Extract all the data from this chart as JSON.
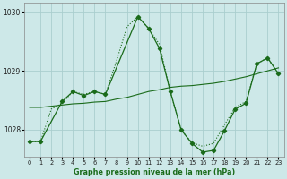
{
  "title": "Graphe pression niveau de la mer (hPa)",
  "background_color": "#cde8e8",
  "grid_color": "#aacece",
  "line_color": "#1a6b1a",
  "xlim": [
    -0.5,
    23.5
  ],
  "ylim": [
    1027.55,
    1030.15
  ],
  "yticks": [
    1028,
    1029,
    1030
  ],
  "xticks": [
    0,
    1,
    2,
    3,
    4,
    5,
    6,
    7,
    8,
    9,
    10,
    11,
    12,
    13,
    14,
    15,
    16,
    17,
    18,
    19,
    20,
    21,
    22,
    23
  ],
  "series1_dotted": {
    "x": [
      0,
      1,
      2,
      3,
      4,
      5,
      6,
      7,
      8,
      9,
      10,
      11,
      12,
      13,
      14,
      15,
      16,
      17,
      18,
      19,
      20,
      21,
      22,
      23
    ],
    "y": [
      1027.8,
      1027.8,
      1028.35,
      1028.45,
      1028.65,
      1028.6,
      1028.65,
      1028.6,
      1029.15,
      1029.75,
      1029.92,
      1029.72,
      1029.45,
      1028.65,
      1028.0,
      1027.78,
      1027.72,
      1027.77,
      1028.08,
      1028.38,
      1028.48,
      1029.12,
      1029.22,
      1028.95
    ]
  },
  "series2_solid": {
    "x": [
      0,
      1,
      2,
      3,
      4,
      5,
      6,
      7,
      8,
      9,
      10,
      11,
      12,
      13,
      14,
      15,
      16,
      17,
      18,
      19,
      20,
      21,
      22,
      23
    ],
    "y": [
      1028.38,
      1028.38,
      1028.4,
      1028.42,
      1028.44,
      1028.45,
      1028.47,
      1028.48,
      1028.52,
      1028.55,
      1028.6,
      1028.65,
      1028.68,
      1028.72,
      1028.74,
      1028.75,
      1028.77,
      1028.79,
      1028.82,
      1028.86,
      1028.9,
      1028.95,
      1029.0,
      1029.05
    ]
  },
  "series3_markers": {
    "x": [
      0,
      1,
      3,
      4,
      5,
      6,
      7,
      10,
      11,
      12,
      13,
      14,
      15,
      16,
      17,
      18,
      19,
      20,
      21,
      22,
      23
    ],
    "y": [
      1027.8,
      1027.8,
      1028.48,
      1028.65,
      1028.58,
      1028.65,
      1028.6,
      1029.92,
      1029.72,
      1029.38,
      1028.65,
      1028.0,
      1027.77,
      1027.62,
      1027.65,
      1027.98,
      1028.35,
      1028.45,
      1029.12,
      1029.22,
      1028.95
    ]
  }
}
